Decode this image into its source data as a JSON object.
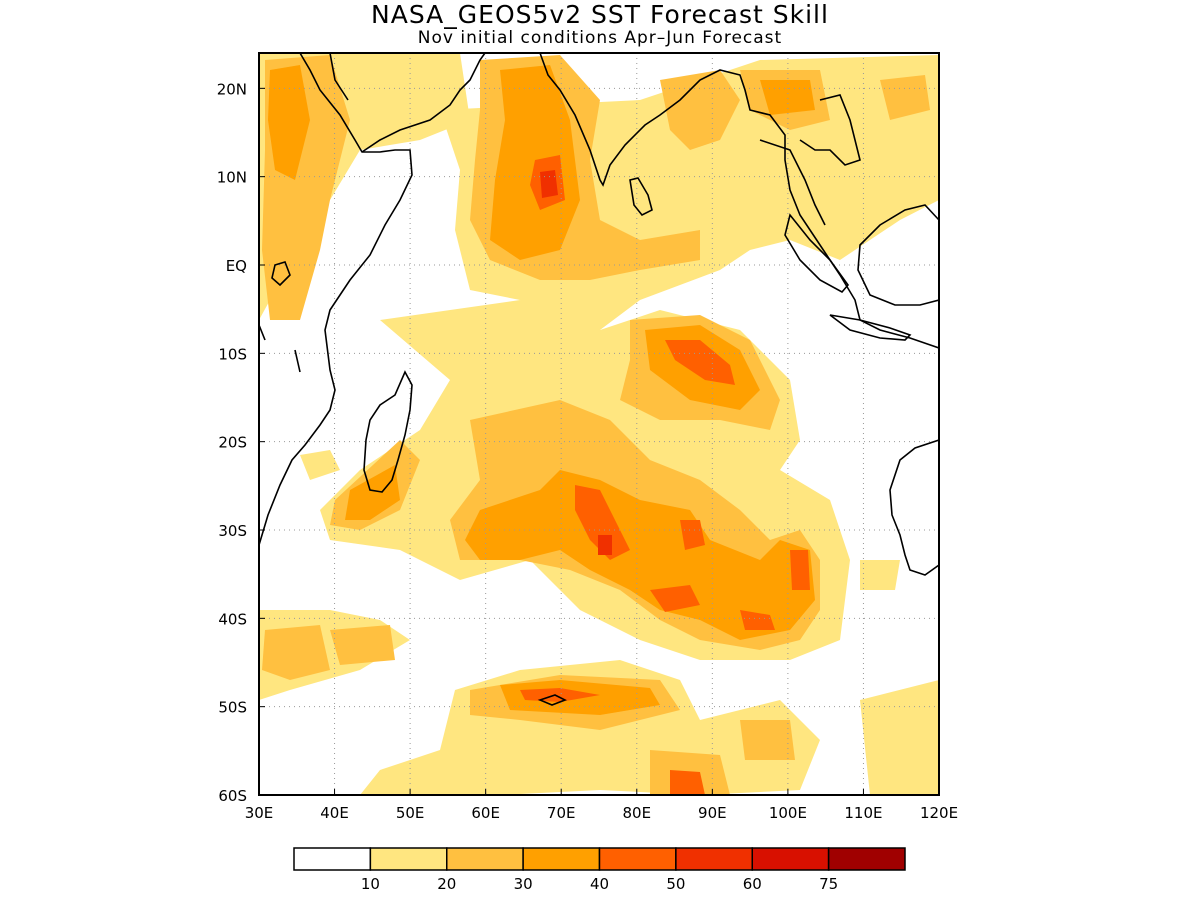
{
  "title": "NASA_GEOS5v2 SST Forecast Skill",
  "subtitle": "Nov initial conditions  Apr–Jun Forecast",
  "map": {
    "region": "Indian Ocean",
    "lon_range": [
      30,
      120
    ],
    "lat_range": [
      -60,
      24
    ],
    "lon_ticks": [
      "30E",
      "40E",
      "50E",
      "60E",
      "70E",
      "80E",
      "90E",
      "100E",
      "110E",
      "120E"
    ],
    "lat_ticks": [
      "20N",
      "10N",
      "EQ",
      "10S",
      "20S",
      "30S",
      "40S",
      "50S",
      "60S"
    ],
    "grid": "dotted"
  },
  "colorbar": {
    "labels": [
      "10",
      "20",
      "30",
      "40",
      "50",
      "60",
      "75"
    ],
    "colors": [
      "#ffffff",
      "#ffe680",
      "#ffc040",
      "#ffa000",
      "#ff6000",
      "#f03000",
      "#d81000",
      "#a00000"
    ]
  },
  "skill_regions": [
    {
      "name": "Arabian Sea / India west coast",
      "level": 3
    },
    {
      "name": "Central Indian Ocean 8S-15S 85E-95E",
      "level": 4
    },
    {
      "name": "Bay of Bengal north",
      "level": 3
    },
    {
      "name": "South Indian Ocean 25S-45S 60E-105E",
      "level": 5
    },
    {
      "name": "Southern Ocean 48S-58S",
      "level": 4
    }
  ]
}
